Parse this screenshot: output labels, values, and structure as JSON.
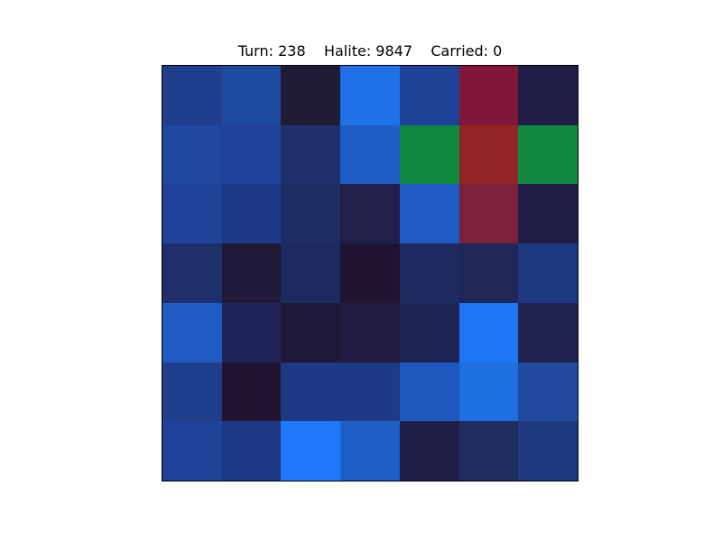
{
  "status": {
    "turn_label": "Turn: 238",
    "halite_label": "Halite: 9847",
    "carried_label": "Carried: 0",
    "separator": "    "
  },
  "board": {
    "rows": 7,
    "cols": 7,
    "cells": [
      [
        "#1f3f8c",
        "#1e4a9e",
        "#201a35",
        "#2070e8",
        "#1f4296",
        "#811639",
        "#201e48"
      ],
      [
        "#1f47a0",
        "#1e4398",
        "#1f2f6b",
        "#1f5dc5",
        "#108840",
        "#922425",
        "#108840"
      ],
      [
        "#1f449a",
        "#1e3a84",
        "#1f2d66",
        "#20204b",
        "#1f5bc2",
        "#7a213b",
        "#201e48"
      ],
      [
        "#1f2f6b",
        "#201a38",
        "#1e2b60",
        "#211432",
        "#1e2b60",
        "#1f2759",
        "#1f3a82"
      ],
      [
        "#1f5bc2",
        "#1f2459",
        "#201a38",
        "#201b40",
        "#1e2455",
        "#1f76f2",
        "#20234f"
      ],
      [
        "#1f3f8c",
        "#211432",
        "#1e3a84",
        "#1f3a84",
        "#1f59bf",
        "#1f6fe2",
        "#1f4a9e"
      ],
      [
        "#1f449a",
        "#1f3a84",
        "#1f78fb",
        "#1f5ec6",
        "#201e48",
        "#1f2d5f",
        "#1f3a82"
      ]
    ]
  }
}
